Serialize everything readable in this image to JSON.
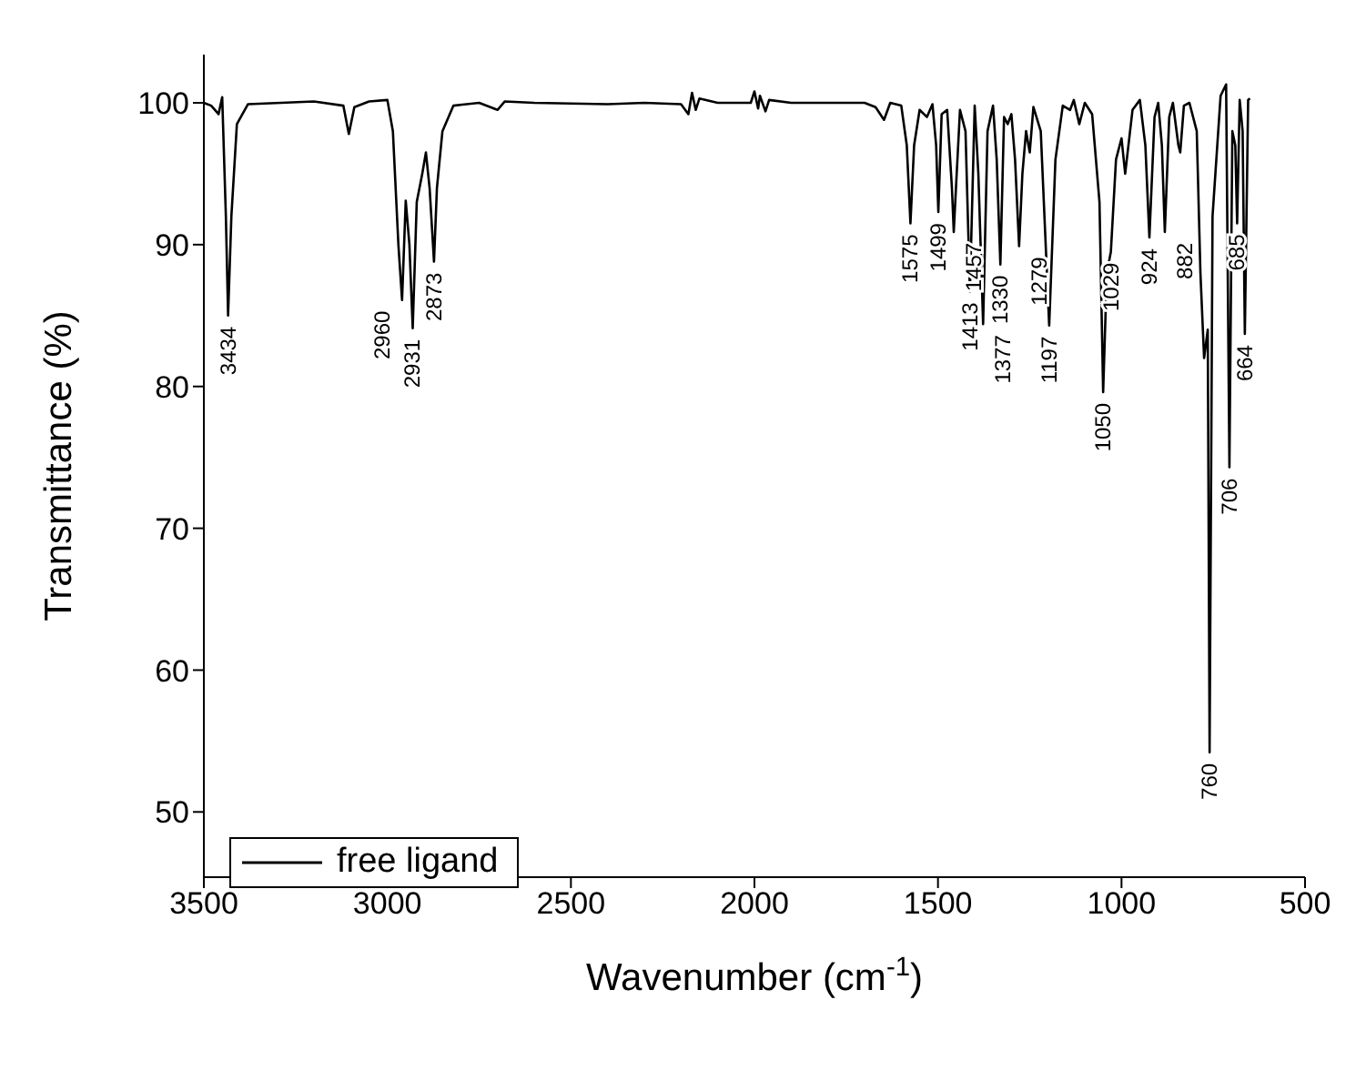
{
  "chart_data": {
    "type": "line",
    "xlabel": "Wavenumber (cm$^{-1}$)",
    "ylabel": "Transmittance (%)",
    "xlim": [
      3500,
      500
    ],
    "xticks": [
      3500,
      3000,
      2500,
      2000,
      1500,
      1000,
      500
    ],
    "ylim": [
      45.4,
      103.4
    ],
    "yticks": [
      50,
      60,
      70,
      80,
      90,
      100
    ],
    "grid": false,
    "legend": "bottom left",
    "marker": "none",
    "line_style": "solid",
    "x": [
      3500,
      3480,
      3460,
      3450,
      3440,
      3434,
      3425,
      3410,
      3380,
      3200,
      3120,
      3105,
      3090,
      3050,
      3000,
      2985,
      2970,
      2960,
      2950,
      2940,
      2931,
      2920,
      2905,
      2895,
      2885,
      2873,
      2865,
      2850,
      2820,
      2750,
      2700,
      2680,
      2600,
      2400,
      2300,
      2200,
      2180,
      2170,
      2160,
      2150,
      2100,
      2010,
      2000,
      1990,
      1985,
      1970,
      1960,
      1900,
      1700,
      1670,
      1647,
      1630,
      1600,
      1585,
      1575,
      1565,
      1550,
      1530,
      1515,
      1505,
      1499,
      1490,
      1475,
      1462,
      1457,
      1450,
      1440,
      1425,
      1413,
      1400,
      1390,
      1377,
      1365,
      1350,
      1340,
      1330,
      1320,
      1310,
      1300,
      1290,
      1279,
      1270,
      1260,
      1250,
      1240,
      1220,
      1197,
      1180,
      1160,
      1140,
      1130,
      1115,
      1100,
      1080,
      1060,
      1050,
      1040,
      1029,
      1015,
      1000,
      990,
      970,
      950,
      935,
      924,
      910,
      900,
      890,
      882,
      870,
      860,
      845,
      840,
      830,
      815,
      795,
      785,
      775,
      765,
      760,
      752,
      730,
      715,
      706,
      698,
      690,
      685,
      678,
      670,
      664,
      655,
      650
    ],
    "series": [
      {
        "name": "free ligand",
        "color": "#000000",
        "values": [
          100,
          99.8,
          99.2,
          100.4,
          92,
          85.0,
          92,
          98.5,
          99.9,
          100.1,
          99.8,
          97.8,
          99.7,
          100.1,
          100.2,
          98,
          90,
          86.1,
          93.1,
          90,
          84.1,
          93,
          95,
          96.5,
          94,
          88.8,
          94,
          98,
          99.8,
          100,
          99.5,
          100.1,
          100,
          99.9,
          100,
          99.9,
          99.2,
          100.7,
          99.5,
          100.3,
          100,
          100,
          100.8,
          99.6,
          100.5,
          99.4,
          100.2,
          100,
          100,
          99.7,
          98.8,
          100,
          99.8,
          97,
          91.5,
          97,
          99.5,
          99,
          99.9,
          97,
          92.3,
          99.2,
          99.5,
          94,
          90.9,
          94.5,
          99.5,
          98,
          86.7,
          99.8,
          95,
          84.4,
          98,
          99.8,
          96,
          88.6,
          99,
          98.5,
          99.2,
          96,
          89.9,
          95,
          98,
          96.5,
          99.7,
          98,
          84.3,
          96,
          99.8,
          99.5,
          100.2,
          98.5,
          100,
          99.2,
          93,
          79.6,
          88,
          89.5,
          96,
          97.5,
          95,
          99.5,
          100.2,
          97,
          90.5,
          99,
          100,
          97,
          90.9,
          99,
          100,
          97,
          96.5,
          99.8,
          100,
          98,
          88,
          82,
          84,
          54.2,
          92,
          100.5,
          101.3,
          74.3,
          98,
          97,
          91.5,
          100.2,
          98,
          83.7,
          100.2,
          100.3
        ]
      }
    ],
    "annotations": [
      {
        "text": "3434",
        "x": 3434,
        "y": 85.0
      },
      {
        "text": "2931",
        "x": 2931,
        "y": 84.1
      },
      {
        "text": "2960",
        "x": 2960,
        "y": 86.1
      },
      {
        "text": "2873",
        "x": 2873,
        "y": 88.8
      },
      {
        "text": "1575",
        "x": 1575,
        "y": 91.5
      },
      {
        "text": "1499",
        "x": 1499,
        "y": 92.3
      },
      {
        "text": "1457",
        "x": 1457,
        "y": 90.9
      },
      {
        "text": "1413",
        "x": 1413,
        "y": 86.7
      },
      {
        "text": "1377",
        "x": 1377,
        "y": 84.4
      },
      {
        "text": "1330",
        "x": 1330,
        "y": 88.6
      },
      {
        "text": "1279",
        "x": 1279,
        "y": 89.9
      },
      {
        "text": "1197",
        "x": 1197,
        "y": 84.3
      },
      {
        "text": "1050",
        "x": 1050,
        "y": 79.6
      },
      {
        "text": "1029",
        "x": 1029,
        "y": 89.5
      },
      {
        "text": "924",
        "x": 924,
        "y": 90.5
      },
      {
        "text": "882",
        "x": 882,
        "y": 90.9
      },
      {
        "text": "760",
        "x": 760,
        "y": 54.2
      },
      {
        "text": "706",
        "x": 706,
        "y": 74.3
      },
      {
        "text": "685",
        "x": 685,
        "y": 91.5
      },
      {
        "text": "664",
        "x": 664,
        "y": 83.7
      }
    ]
  }
}
